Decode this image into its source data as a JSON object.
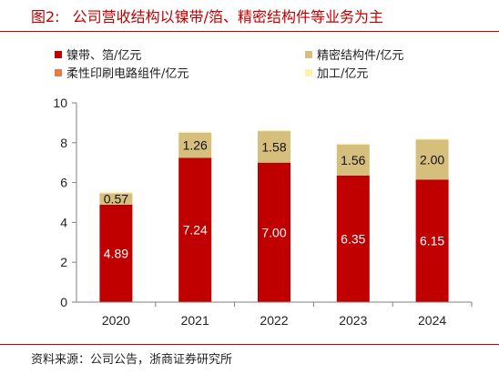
{
  "figure": {
    "number": "图2:",
    "title": "公司营收结构以镍带/箔、精密结构件等业务为主"
  },
  "source": "资料来源：公司公告，浙商证券研究所",
  "colors": {
    "accent": "#c00000",
    "nickel": "#c00000",
    "precision": "#d6bf7c",
    "flexible": "#e8784a",
    "processing": "#fff2a8"
  },
  "chart_data": {
    "type": "bar",
    "stacked": true,
    "categories": [
      "2020",
      "2021",
      "2022",
      "2023",
      "2024"
    ],
    "series": [
      {
        "name": "镍带、箔/亿元",
        "values": [
          4.89,
          7.24,
          7.0,
          6.35,
          6.15
        ],
        "labels": [
          "4.89",
          "7.24",
          "7.00",
          "6.35",
          "6.15"
        ]
      },
      {
        "name": "精密结构件/亿元",
        "values": [
          0.57,
          1.26,
          1.58,
          1.56,
          2.0
        ],
        "labels": [
          "0.57",
          "1.26",
          "1.58",
          "1.56",
          "2.00"
        ]
      },
      {
        "name": "柔性印刷电路组件/亿元",
        "values": [
          0,
          0,
          0,
          0,
          0
        ],
        "labels": []
      },
      {
        "name": "加工/亿元",
        "values": [
          0.05,
          0.05,
          0.05,
          0.05,
          0.05
        ],
        "labels": []
      }
    ],
    "yticks": [
      "0",
      "2",
      "4",
      "6",
      "8",
      "10"
    ],
    "ylim": [
      0,
      10
    ],
    "grid": false,
    "legend_position": "top"
  }
}
